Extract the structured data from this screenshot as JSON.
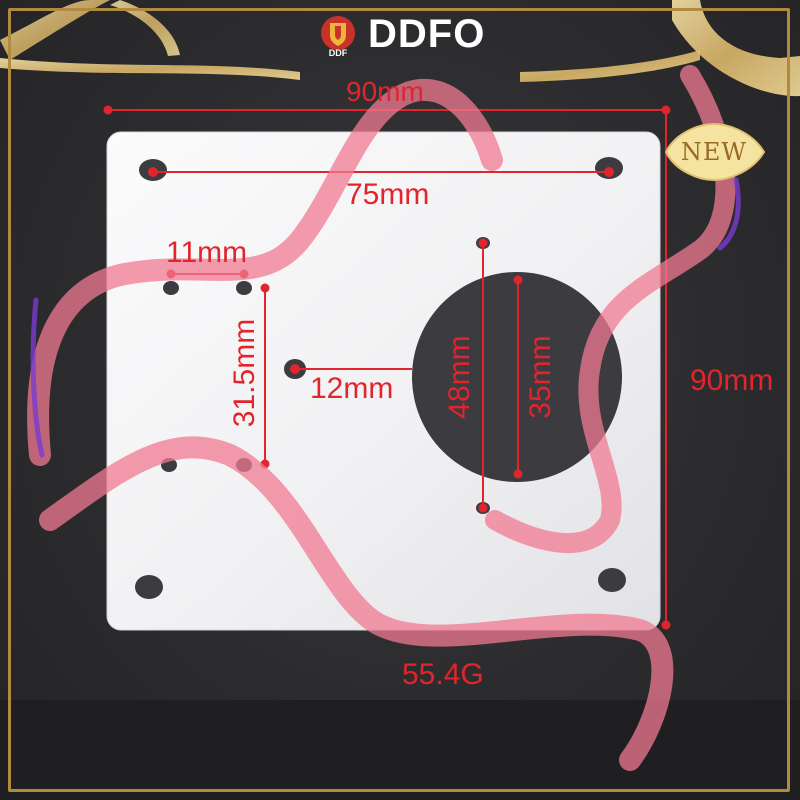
{
  "brand": {
    "name": "DDFO",
    "logo_text": "DDF",
    "logo_icon": "shield-crest-icon"
  },
  "badge": {
    "text": "NEW"
  },
  "dimensions": {
    "overall_width": "90mm",
    "overall_height": "90mm",
    "mount_hole_spacing": "75mm",
    "small_hole_spacing": "11mm",
    "vertical_hole_spacing": "31.5mm",
    "center_hole_offset": "12mm",
    "outer_hole_spacing": "48mm",
    "center_hole_diameter": "35mm"
  },
  "weight": "55.4G",
  "colors": {
    "dimension_red": "#e0262c",
    "plate": "#f2f2f4",
    "background": "#2c2c2f",
    "gold_ribbon": "#e7c982",
    "pink_ribbon": "#f0768e"
  }
}
